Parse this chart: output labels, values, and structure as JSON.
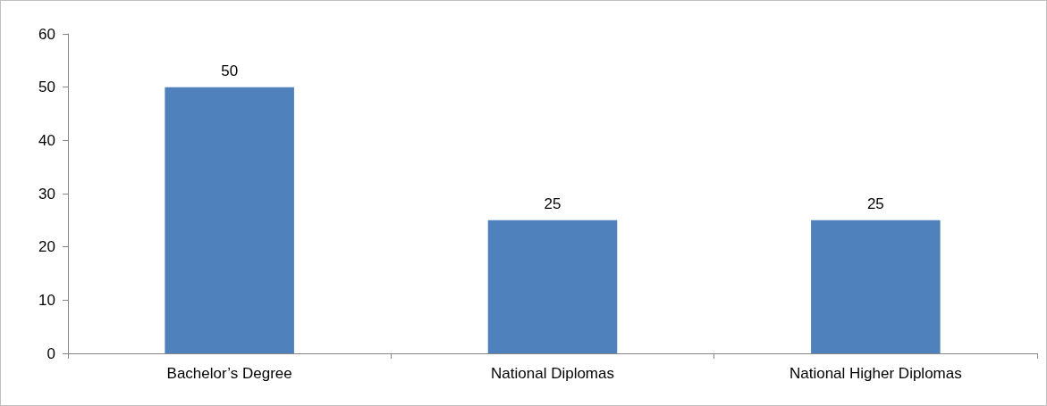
{
  "chart_data": {
    "type": "bar",
    "categories": [
      "Bachelor’s Degree",
      "National Diplomas",
      "National Higher Diplomas"
    ],
    "values": [
      50,
      25,
      25
    ],
    "color": "#4f81bd",
    "ylim": [
      0,
      60
    ],
    "yticks": [
      0,
      10,
      20,
      30,
      40,
      50,
      60
    ],
    "grid": false,
    "data_labels": true
  }
}
